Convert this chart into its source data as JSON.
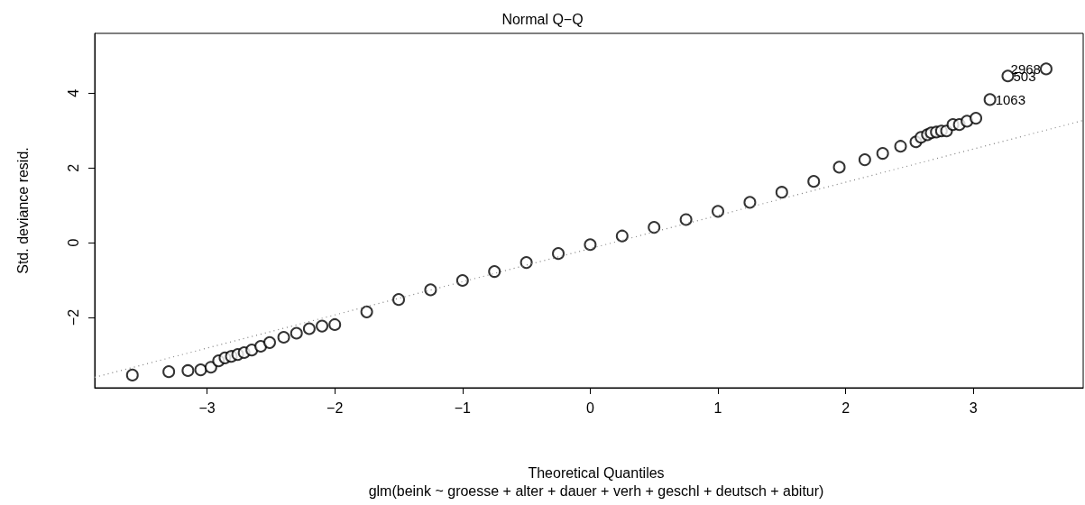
{
  "chart_data": {
    "type": "scatter",
    "title": "Normal Q−Q",
    "xlabel": "Theoretical Quantiles",
    "subtitle": "glm(beink ~ groesse + alter + dauer + verh + geschl + deutsch + abitur)",
    "ylabel": "Std. deviance resid.",
    "xlim": [
      -3.88,
      3.86
    ],
    "ylim": [
      -3.88,
      5.6
    ],
    "xticks": [
      {
        "value": -3,
        "label": "−3"
      },
      {
        "value": -2,
        "label": "−2"
      },
      {
        "value": -1,
        "label": "−1"
      },
      0,
      1,
      2,
      3
    ],
    "yticks": [
      {
        "value": -2,
        "label": "−2"
      },
      0,
      2,
      4
    ],
    "marker": "circle",
    "grid": false,
    "series": [
      {
        "color": "#000000",
        "x": [
          -3.585,
          -3.3,
          -3.15,
          -3.05,
          -2.97,
          -2.91,
          -2.86,
          -2.81,
          -2.76,
          -2.71,
          -2.65,
          -2.58,
          -2.51,
          -2.4,
          -2.3,
          -2.2,
          -2.1,
          -2.0,
          -1.75,
          -1.5,
          -1.25,
          -1.0,
          -0.75,
          -0.5,
          -0.25,
          0,
          0.25,
          0.5,
          0.75,
          1.0,
          1.25,
          1.5,
          1.75,
          1.95,
          2.15,
          2.29,
          2.43,
          2.55,
          2.59,
          2.64,
          2.67,
          2.71,
          2.75,
          2.79,
          2.84,
          2.89,
          2.95,
          3.02,
          3.13,
          3.27,
          3.57
        ],
        "values": [
          -3.54,
          -3.45,
          -3.42,
          -3.4,
          -3.33,
          -3.16,
          -3.08,
          -3.04,
          -2.99,
          -2.94,
          -2.87,
          -2.77,
          -2.67,
          -2.53,
          -2.42,
          -2.3,
          -2.23,
          -2.19,
          -1.85,
          -1.52,
          -1.26,
          -1.01,
          -0.77,
          -0.53,
          -0.29,
          -0.05,
          0.18,
          0.41,
          0.62,
          0.84,
          1.08,
          1.35,
          1.64,
          2.02,
          2.22,
          2.39,
          2.58,
          2.7,
          2.82,
          2.89,
          2.94,
          2.96,
          2.99,
          2.99,
          3.16,
          3.16,
          3.25,
          3.33,
          3.83,
          4.46,
          4.65
        ]
      },
      {
        "type": "line",
        "color": "#808080",
        "line_style": "dotted",
        "marker": "none",
        "x": [
          -3.88,
          3.86
        ],
        "values": [
          -3.6,
          3.27
        ]
      }
    ],
    "annotations": [
      {
        "text": "2968",
        "x": 3.57,
        "y": 4.65
      },
      {
        "text": "503",
        "x": 3.27,
        "y": 4.46
      },
      {
        "text": "1063",
        "x": 3.13,
        "y": 3.83
      }
    ]
  }
}
